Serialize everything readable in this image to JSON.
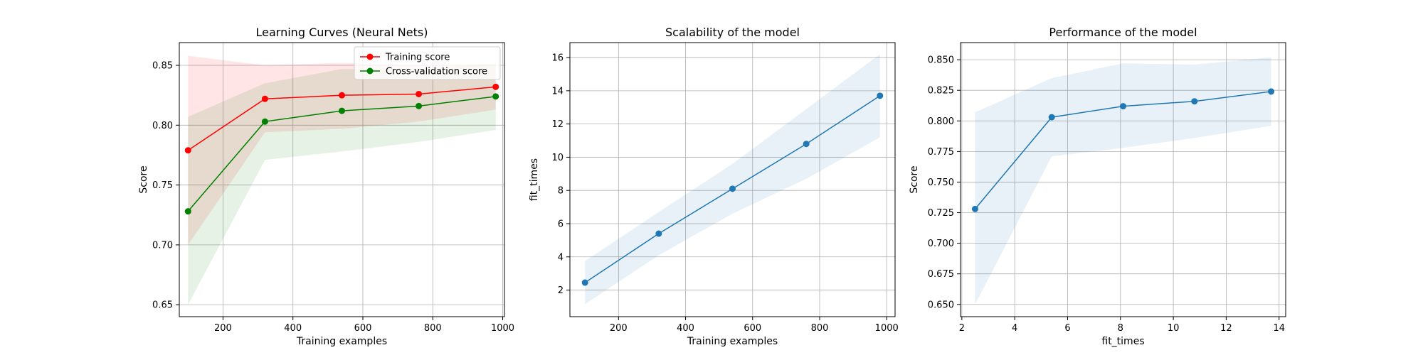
{
  "colors": {
    "training": "#ff0000",
    "cv": "#008000",
    "training_fill": "#ff0000",
    "cv_fill": "#008000",
    "blue": "#1f77b4",
    "grid": "#b0b0b0"
  },
  "chart_data": [
    {
      "type": "line",
      "title": "Learning Curves (Neural Nets)",
      "xlabel": "Training examples",
      "ylabel": "Score",
      "xlim": [
        75,
        1005
      ],
      "ylim": [
        0.64,
        0.869
      ],
      "xticks": [
        200,
        400,
        600,
        800,
        1000
      ],
      "yticks": [
        0.65,
        0.7,
        0.75,
        0.8,
        0.85
      ],
      "ytick_labels": [
        "0.65",
        "0.70",
        "0.75",
        "0.80",
        "0.85"
      ],
      "grid": true,
      "legend": "upper right",
      "x": [
        100,
        320,
        540,
        760,
        980
      ],
      "series": [
        {
          "name": "Training score",
          "color_key": "training",
          "values": [
            0.779,
            0.822,
            0.825,
            0.826,
            0.832
          ],
          "band_low": [
            0.7,
            0.794,
            0.797,
            0.803,
            0.813
          ],
          "band_high": [
            0.858,
            0.85,
            0.852,
            0.85,
            0.851
          ]
        },
        {
          "name": "Cross-validation score",
          "color_key": "cv",
          "values": [
            0.728,
            0.803,
            0.812,
            0.816,
            0.824
          ],
          "band_low": [
            0.65,
            0.771,
            0.778,
            0.786,
            0.796
          ],
          "band_high": [
            0.807,
            0.835,
            0.847,
            0.846,
            0.852
          ]
        }
      ]
    },
    {
      "type": "line",
      "title": "Scalability of the model",
      "xlabel": "Training examples",
      "ylabel": "fit_times",
      "xlim": [
        55,
        1025
      ],
      "ylim": [
        0.4,
        16.9
      ],
      "xticks": [
        200,
        400,
        600,
        800,
        1000
      ],
      "yticks": [
        2,
        4,
        6,
        8,
        10,
        12,
        14,
        16
      ],
      "grid": true,
      "x": [
        100,
        320,
        540,
        760,
        980
      ],
      "series": [
        {
          "color_key": "blue",
          "values": [
            2.45,
            5.4,
            8.1,
            10.8,
            13.7
          ],
          "band_low": [
            1.15,
            4.1,
            6.6,
            8.7,
            11.2
          ],
          "band_high": [
            3.75,
            6.7,
            9.6,
            12.9,
            16.2
          ]
        }
      ]
    },
    {
      "type": "line",
      "title": "Performance of the model",
      "xlabel": "fit_times",
      "ylabel": "Score",
      "xlim": [
        1.95,
        14.25
      ],
      "ylim": [
        0.64,
        0.864
      ],
      "xticks": [
        2,
        4,
        6,
        8,
        10,
        12,
        14
      ],
      "yticks": [
        0.65,
        0.675,
        0.7,
        0.725,
        0.75,
        0.775,
        0.8,
        0.825,
        0.85
      ],
      "ytick_labels": [
        "0.650",
        "0.675",
        "0.700",
        "0.725",
        "0.750",
        "0.775",
        "0.800",
        "0.825",
        "0.850"
      ],
      "grid": true,
      "x": [
        2.5,
        5.4,
        8.1,
        10.8,
        13.7
      ],
      "series": [
        {
          "color_key": "blue",
          "values": [
            0.728,
            0.803,
            0.812,
            0.816,
            0.824
          ],
          "band_low": [
            0.65,
            0.771,
            0.778,
            0.786,
            0.796
          ],
          "band_high": [
            0.807,
            0.835,
            0.847,
            0.846,
            0.852
          ]
        }
      ]
    }
  ]
}
